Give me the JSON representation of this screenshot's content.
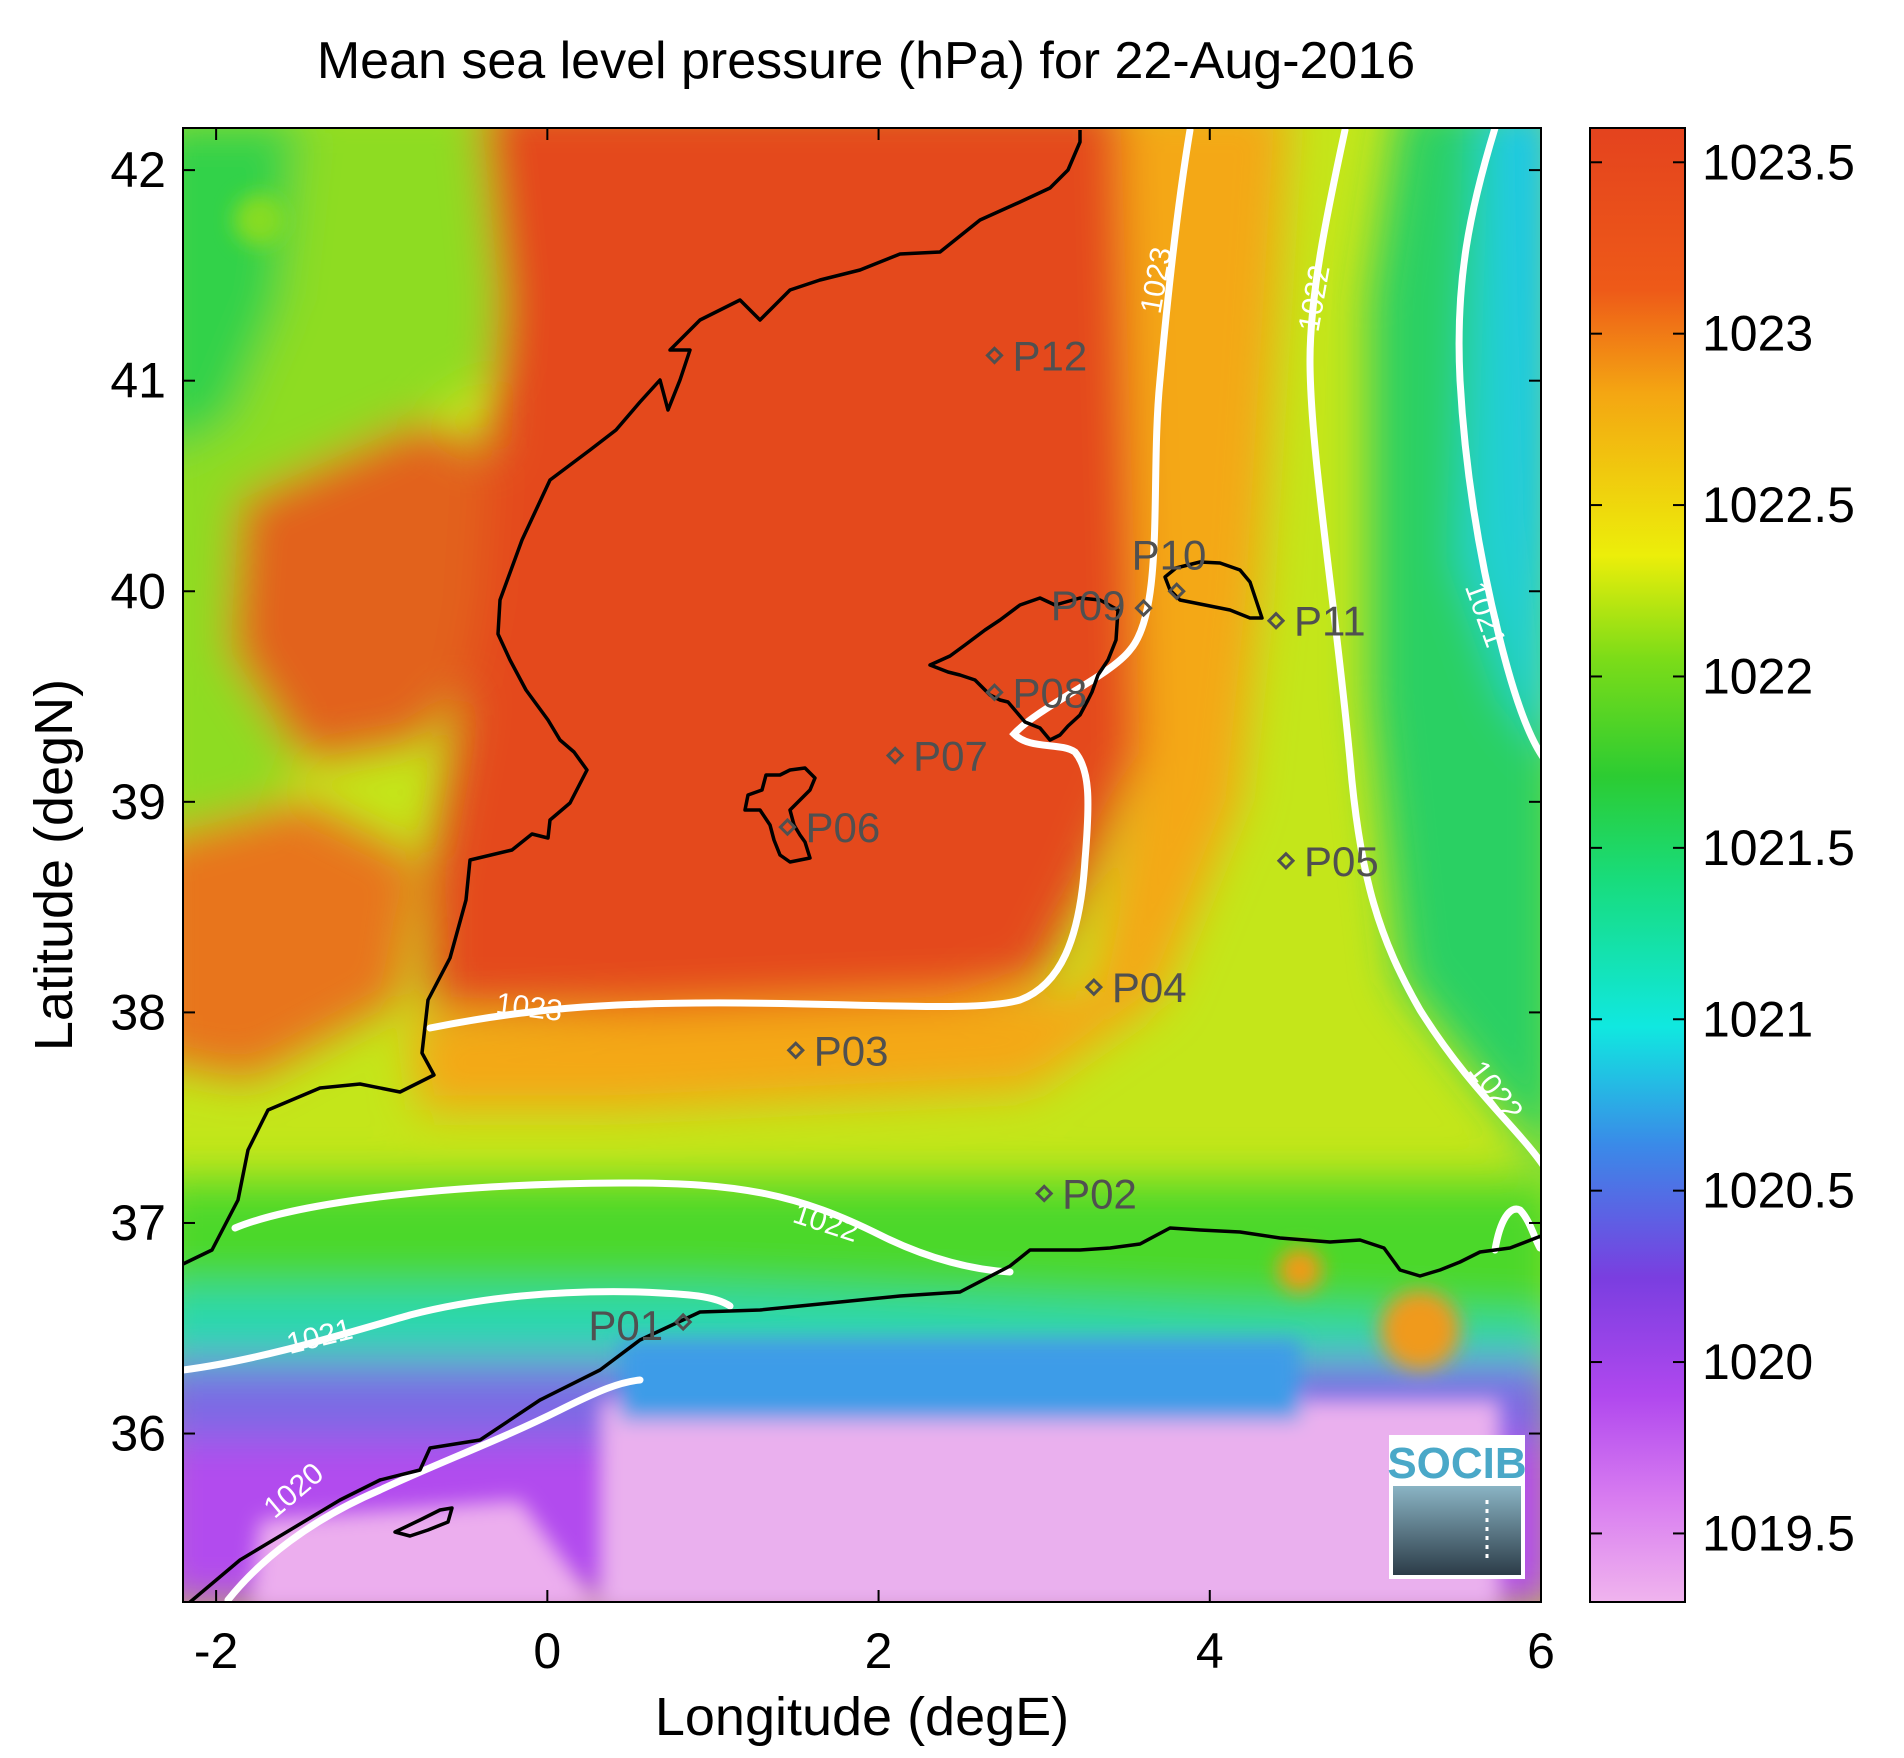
{
  "title": "Mean sea level pressure (hPa) for 22-Aug-2016",
  "xlabel": "Longitude (degE)",
  "ylabel": "Latitude (degN)",
  "xticks": [
    "-2",
    "0",
    "2",
    "4",
    "6"
  ],
  "yticks": [
    "36",
    "37",
    "38",
    "39",
    "40",
    "41",
    "42"
  ],
  "colorbar": {
    "ticks": [
      "1019.5",
      "1020",
      "1020.5",
      "1021",
      "1021.5",
      "1022",
      "1022.5",
      "1023",
      "1023.5"
    ],
    "colors": [
      "#f0b4ee",
      "#c846f0",
      "#7a3ee0",
      "#3a8ae8",
      "#10e8e0",
      "#18dc7c",
      "#2ccc32",
      "#7cdc18",
      "#ecee0a",
      "#f4a612",
      "#ee5a18",
      "#e4431e"
    ]
  },
  "contour_labels": [
    "1023",
    "1022",
    "1021",
    "1022",
    "1023",
    "1022",
    "1021",
    "1020"
  ],
  "logo": {
    "text": "SOCIB"
  },
  "chart_data": {
    "type": "map",
    "title": "Mean sea level pressure (hPa) for 22-Aug-2016",
    "xlabel": "Longitude (degE)",
    "ylabel": "Latitude (degN)",
    "xlim": [
      -2.2,
      6
    ],
    "ylim": [
      35.2,
      42.2
    ],
    "colorbar_range": [
      1019.3,
      1023.6
    ],
    "contour_levels": [
      1020,
      1021,
      1022,
      1023
    ],
    "stations": [
      {
        "name": "P01",
        "lon": 0.82,
        "lat": 36.53
      },
      {
        "name": "P02",
        "lon": 3.0,
        "lat": 37.14
      },
      {
        "name": "P03",
        "lon": 1.5,
        "lat": 37.82
      },
      {
        "name": "P04",
        "lon": 3.3,
        "lat": 38.12
      },
      {
        "name": "P05",
        "lon": 4.46,
        "lat": 38.72
      },
      {
        "name": "P06",
        "lon": 1.45,
        "lat": 38.88
      },
      {
        "name": "P07",
        "lon": 2.1,
        "lat": 39.22
      },
      {
        "name": "P08",
        "lon": 2.7,
        "lat": 39.52
      },
      {
        "name": "P09",
        "lon": 3.6,
        "lat": 39.92
      },
      {
        "name": "P10",
        "lon": 3.8,
        "lat": 40.0
      },
      {
        "name": "P11",
        "lon": 4.4,
        "lat": 39.86
      },
      {
        "name": "P12",
        "lon": 2.7,
        "lat": 41.12
      }
    ]
  }
}
